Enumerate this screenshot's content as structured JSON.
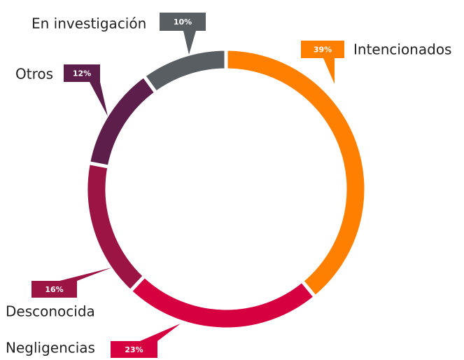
{
  "chart_data": {
    "type": "donut",
    "categories": [
      "Intencionados",
      "Negligencias",
      "Desconocida",
      "Otros",
      "En investigación"
    ],
    "values": [
      39,
      23,
      16,
      12,
      10
    ],
    "value_labels": [
      "39%",
      "23%",
      "16%",
      "12%",
      "10%"
    ],
    "colors": [
      "#ff8000",
      "#d60040",
      "#9b1444",
      "#5e1e4c",
      "#595e63"
    ]
  }
}
